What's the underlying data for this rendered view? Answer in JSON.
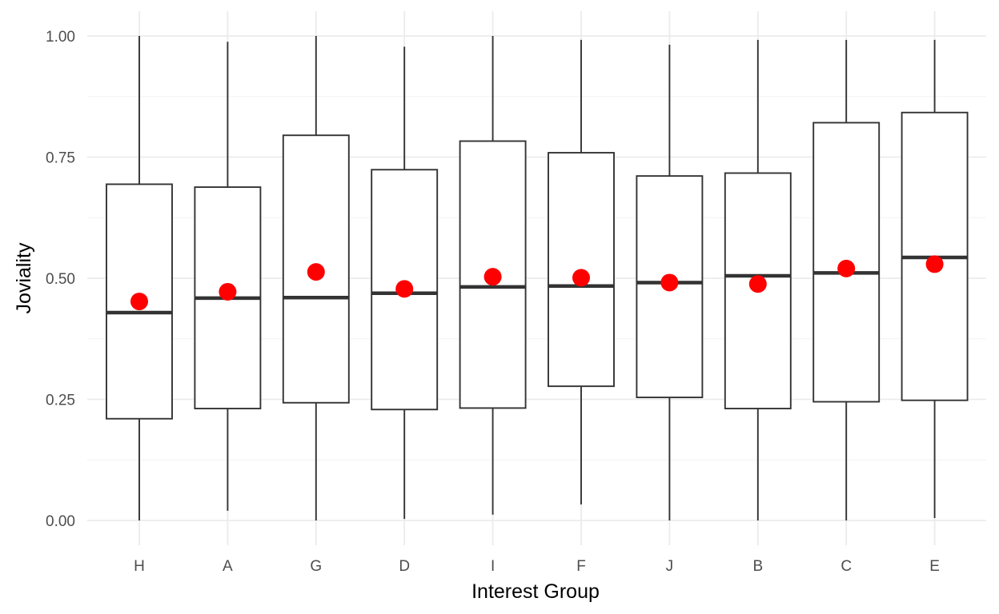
{
  "chart_data": {
    "type": "boxplot",
    "xlabel": "Interest Group",
    "ylabel": "Joviality",
    "ylim": [
      -0.045,
      1.045
    ],
    "y_ticks": [
      "0.00",
      "0.25",
      "0.50",
      "0.75",
      "1.00"
    ],
    "y_tick_values": [
      0,
      0.25,
      0.5,
      0.75,
      1.0
    ],
    "categories": [
      "H",
      "A",
      "G",
      "D",
      "I",
      "F",
      "J",
      "B",
      "C",
      "E"
    ],
    "boxes": [
      {
        "group": "H",
        "min": 0.0,
        "q1": 0.21,
        "median": 0.429,
        "q3": 0.694,
        "max": 1.0,
        "mean": 0.452
      },
      {
        "group": "A",
        "min": 0.02,
        "q1": 0.231,
        "median": 0.459,
        "q3": 0.688,
        "max": 0.988,
        "mean": 0.472
      },
      {
        "group": "G",
        "min": 0.0,
        "q1": 0.243,
        "median": 0.46,
        "q3": 0.795,
        "max": 1.0,
        "mean": 0.513
      },
      {
        "group": "D",
        "min": 0.003,
        "q1": 0.229,
        "median": 0.469,
        "q3": 0.724,
        "max": 0.978,
        "mean": 0.478
      },
      {
        "group": "I",
        "min": 0.012,
        "q1": 0.232,
        "median": 0.482,
        "q3": 0.783,
        "max": 1.0,
        "mean": 0.503
      },
      {
        "group": "F",
        "min": 0.033,
        "q1": 0.277,
        "median": 0.484,
        "q3": 0.759,
        "max": 0.992,
        "mean": 0.501
      },
      {
        "group": "J",
        "min": 0.0,
        "q1": 0.254,
        "median": 0.491,
        "q3": 0.711,
        "max": 0.982,
        "mean": 0.491
      },
      {
        "group": "B",
        "min": 0.0,
        "q1": 0.231,
        "median": 0.505,
        "q3": 0.717,
        "max": 0.992,
        "mean": 0.488
      },
      {
        "group": "C",
        "min": 0.0,
        "q1": 0.245,
        "median": 0.511,
        "q3": 0.821,
        "max": 0.992,
        "mean": 0.52
      },
      {
        "group": "E",
        "min": 0.005,
        "q1": 0.248,
        "median": 0.543,
        "q3": 0.842,
        "max": 0.992,
        "mean": 0.529
      }
    ],
    "mean_marker_color": "#ff0000",
    "box_fill": "#ffffff",
    "box_stroke": "#333333",
    "grid": true,
    "legend": "none"
  }
}
